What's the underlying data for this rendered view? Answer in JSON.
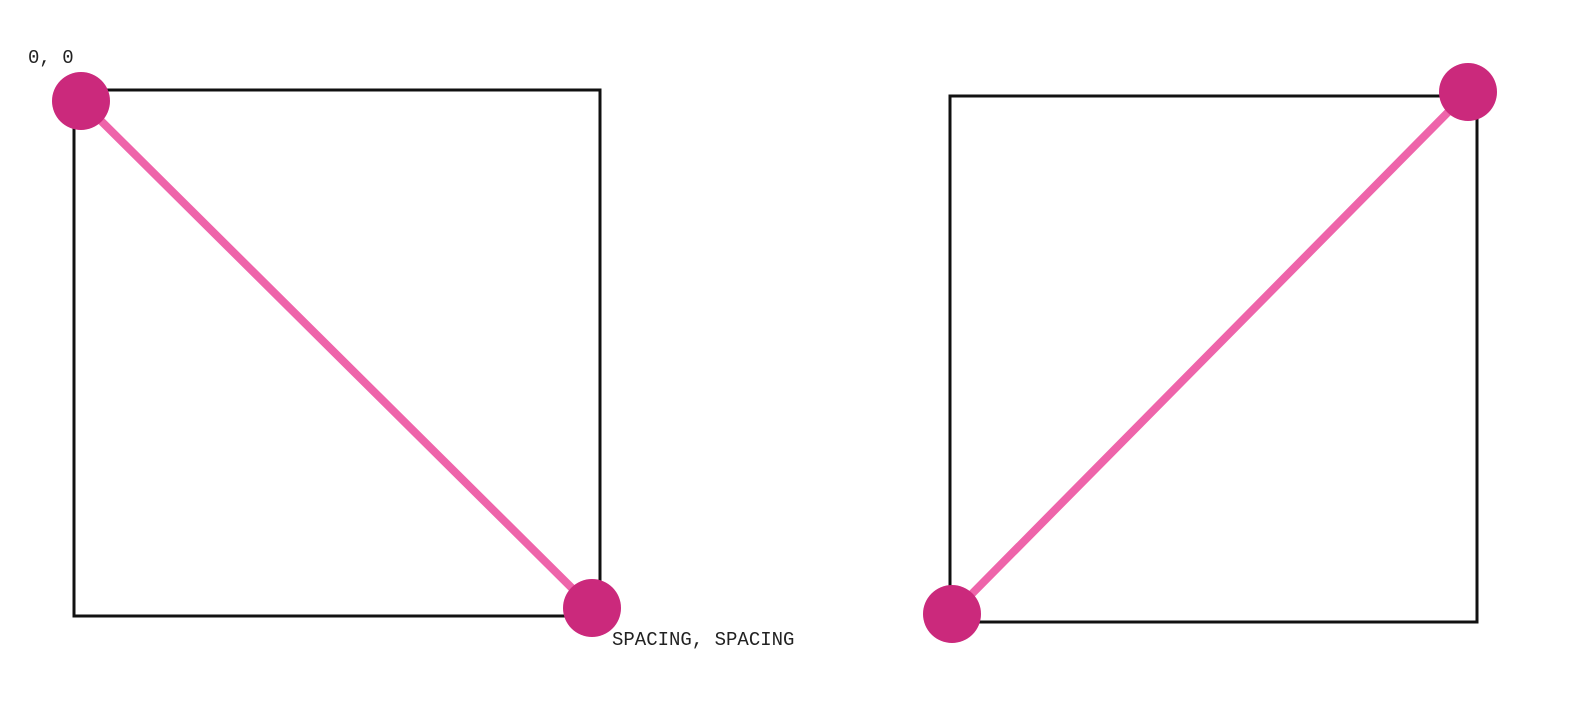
{
  "colors": {
    "line": "#EE64AA",
    "dot": "#CB297C",
    "square": "#111111",
    "text": "#222222",
    "background": "#FFFFFF"
  },
  "left_diagram": {
    "start_label": "0, 0",
    "end_label": "SPACING, SPACING"
  }
}
